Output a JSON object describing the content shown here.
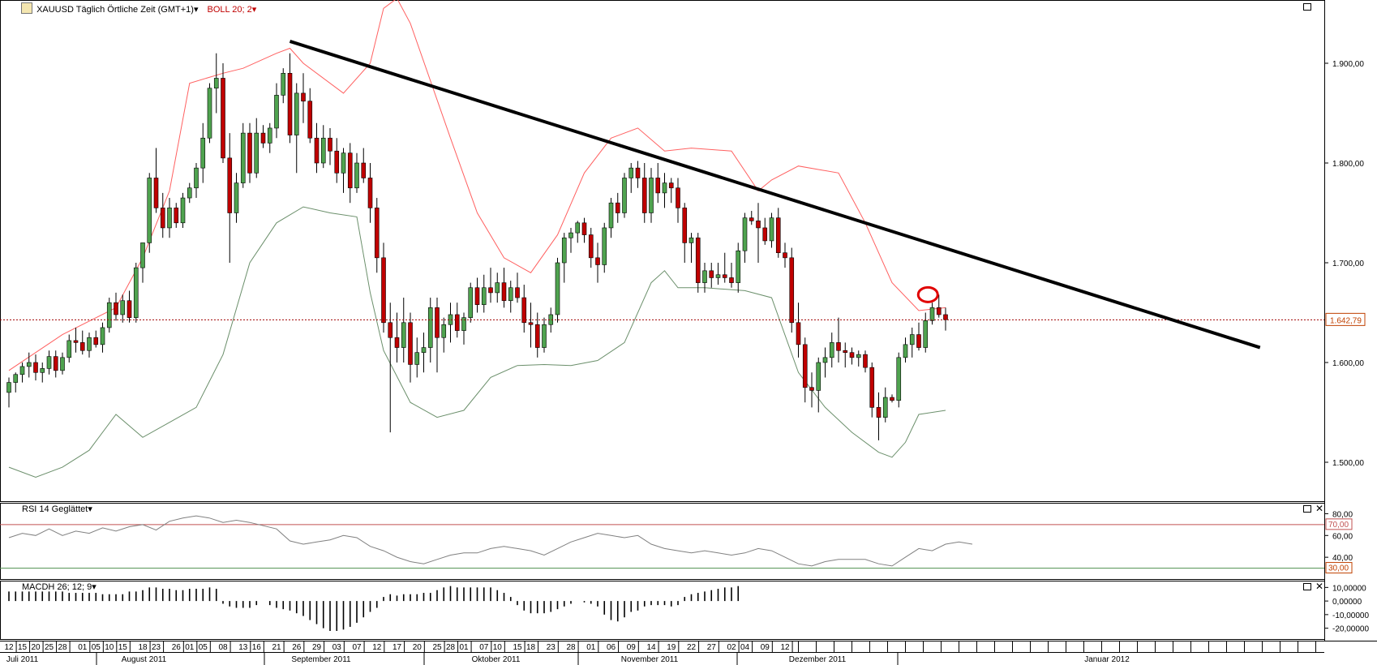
{
  "header": {
    "symbol": "XAUUSD Täglich Örtliche Zeit (GMT+1)",
    "indicator": "BOLL 20; 2"
  },
  "rsi_panel": {
    "label": "RSI 14 Geglättet"
  },
  "macd_panel": {
    "label": "MACDH 26; 12; 9"
  },
  "price_tag": "1.642,79",
  "icons": {
    "panel": "maximize-icon",
    "close": "close-icon",
    "dropdown": "dropdown-arrow-icon"
  },
  "colors": {
    "up": "#4fa34f",
    "down": "#c00000",
    "upper_band": "#ff6060",
    "lower_band": "#6b8f6b",
    "trendline": "#000000",
    "level_line": "#a00000",
    "rsi_line": "#808080",
    "rsi_70": "#c05050",
    "rsi_30": "#4f8f4f"
  },
  "axes": {
    "price_ticks": [
      "1.900,00",
      "1.800,00",
      "1.700,00",
      "1.600,00",
      "1.500,00"
    ],
    "rsi_ticks": [
      "80,00",
      "60,00",
      "40,00"
    ],
    "rsi_levels": [
      "70,00",
      "30,00"
    ],
    "macd_ticks": [
      "10,00000",
      "0,00000",
      "-10,00000",
      "-20,00000"
    ],
    "day_ticks": [
      "12",
      "15",
      "20",
      "25",
      "28",
      "01",
      "05",
      "10",
      "15",
      "18",
      "23",
      "26",
      "01",
      "05",
      "08",
      "13",
      "16",
      "21",
      "26",
      "29",
      "03",
      "07",
      "12",
      "17",
      "20",
      "25",
      "28",
      "01",
      "07",
      "10",
      "15",
      "18",
      "23",
      "28",
      "01",
      "06",
      "09",
      "14",
      "19",
      "22",
      "27",
      "02",
      "04",
      "09",
      "12"
    ],
    "month_labels": [
      "Juli 2011",
      "August 2011",
      "September 2011",
      "Oktober 2011",
      "November 2011",
      "Dezember 2011",
      "Januar 2012"
    ]
  },
  "chart_data": {
    "type": "candlestick",
    "title": "XAUUSD Täglich Örtliche Zeit (GMT+1)",
    "price_range": [
      1470,
      1970
    ],
    "current_price": 1642.79,
    "candles": [
      [
        1570,
        1585,
        1555,
        1580
      ],
      [
        1580,
        1590,
        1570,
        1588
      ],
      [
        1588,
        1600,
        1580,
        1596
      ],
      [
        1596,
        1610,
        1585,
        1600
      ],
      [
        1600,
        1608,
        1582,
        1590
      ],
      [
        1590,
        1600,
        1580,
        1594
      ],
      [
        1594,
        1612,
        1588,
        1606
      ],
      [
        1606,
        1612,
        1585,
        1592
      ],
      [
        1592,
        1610,
        1588,
        1605
      ],
      [
        1605,
        1628,
        1600,
        1622
      ],
      [
        1622,
        1635,
        1610,
        1620
      ],
      [
        1620,
        1632,
        1608,
        1612
      ],
      [
        1612,
        1630,
        1605,
        1625
      ],
      [
        1625,
        1632,
        1615,
        1618
      ],
      [
        1618,
        1640,
        1610,
        1635
      ],
      [
        1635,
        1665,
        1630,
        1660
      ],
      [
        1660,
        1670,
        1642,
        1648
      ],
      [
        1648,
        1668,
        1640,
        1662
      ],
      [
        1662,
        1672,
        1640,
        1645
      ],
      [
        1645,
        1700,
        1640,
        1695
      ],
      [
        1695,
        1720,
        1680,
        1720
      ],
      [
        1720,
        1790,
        1710,
        1785
      ],
      [
        1785,
        1815,
        1750,
        1755
      ],
      [
        1755,
        1770,
        1725,
        1735
      ],
      [
        1735,
        1765,
        1725,
        1755
      ],
      [
        1755,
        1760,
        1735,
        1740
      ],
      [
        1740,
        1770,
        1735,
        1765
      ],
      [
        1765,
        1780,
        1760,
        1775
      ],
      [
        1775,
        1800,
        1765,
        1795
      ],
      [
        1795,
        1840,
        1780,
        1825
      ],
      [
        1825,
        1880,
        1820,
        1875
      ],
      [
        1875,
        1910,
        1850,
        1885
      ],
      [
        1885,
        1900,
        1800,
        1805
      ],
      [
        1805,
        1830,
        1700,
        1750
      ],
      [
        1750,
        1790,
        1740,
        1780
      ],
      [
        1780,
        1840,
        1775,
        1830
      ],
      [
        1830,
        1840,
        1780,
        1790
      ],
      [
        1790,
        1845,
        1785,
        1830
      ],
      [
        1830,
        1838,
        1815,
        1820
      ],
      [
        1820,
        1840,
        1810,
        1835
      ],
      [
        1835,
        1880,
        1825,
        1868
      ],
      [
        1868,
        1895,
        1860,
        1890
      ],
      [
        1890,
        1910,
        1820,
        1828
      ],
      [
        1828,
        1880,
        1790,
        1870
      ],
      [
        1870,
        1890,
        1840,
        1862
      ],
      [
        1862,
        1875,
        1820,
        1825
      ],
      [
        1825,
        1840,
        1790,
        1800
      ],
      [
        1800,
        1838,
        1795,
        1825
      ],
      [
        1825,
        1835,
        1798,
        1812
      ],
      [
        1812,
        1825,
        1780,
        1790
      ],
      [
        1790,
        1815,
        1770,
        1810
      ],
      [
        1810,
        1820,
        1760,
        1775
      ],
      [
        1775,
        1810,
        1770,
        1800
      ],
      [
        1800,
        1815,
        1780,
        1785
      ],
      [
        1785,
        1800,
        1740,
        1755
      ],
      [
        1755,
        1765,
        1690,
        1705
      ],
      [
        1705,
        1720,
        1630,
        1640
      ],
      [
        1640,
        1660,
        1530,
        1625
      ],
      [
        1625,
        1650,
        1600,
        1615
      ],
      [
        1615,
        1665,
        1600,
        1640
      ],
      [
        1640,
        1650,
        1580,
        1598
      ],
      [
        1598,
        1625,
        1585,
        1610
      ],
      [
        1610,
        1630,
        1590,
        1615
      ],
      [
        1615,
        1665,
        1600,
        1655
      ],
      [
        1655,
        1665,
        1590,
        1625
      ],
      [
        1625,
        1645,
        1610,
        1638
      ],
      [
        1638,
        1660,
        1620,
        1648
      ],
      [
        1648,
        1660,
        1625,
        1632
      ],
      [
        1632,
        1650,
        1618,
        1645
      ],
      [
        1645,
        1680,
        1640,
        1675
      ],
      [
        1675,
        1685,
        1650,
        1658
      ],
      [
        1658,
        1688,
        1650,
        1675
      ],
      [
        1675,
        1695,
        1660,
        1670
      ],
      [
        1670,
        1690,
        1660,
        1680
      ],
      [
        1680,
        1695,
        1655,
        1662
      ],
      [
        1662,
        1682,
        1650,
        1675
      ],
      [
        1675,
        1690,
        1660,
        1665
      ],
      [
        1665,
        1678,
        1630,
        1640
      ],
      [
        1640,
        1660,
        1615,
        1638
      ],
      [
        1638,
        1650,
        1605,
        1615
      ],
      [
        1615,
        1645,
        1610,
        1638
      ],
      [
        1638,
        1655,
        1630,
        1648
      ],
      [
        1648,
        1705,
        1640,
        1700
      ],
      [
        1700,
        1730,
        1680,
        1725
      ],
      [
        1725,
        1735,
        1710,
        1730
      ],
      [
        1730,
        1742,
        1720,
        1740
      ],
      [
        1740,
        1745,
        1720,
        1728
      ],
      [
        1728,
        1735,
        1695,
        1705
      ],
      [
        1705,
        1720,
        1680,
        1698
      ],
      [
        1698,
        1740,
        1690,
        1735
      ],
      [
        1735,
        1765,
        1725,
        1760
      ],
      [
        1760,
        1770,
        1740,
        1750
      ],
      [
        1750,
        1790,
        1745,
        1785
      ],
      [
        1785,
        1800,
        1770,
        1795
      ],
      [
        1795,
        1802,
        1775,
        1785
      ],
      [
        1785,
        1800,
        1740,
        1750
      ],
      [
        1750,
        1795,
        1740,
        1785
      ],
      [
        1785,
        1800,
        1760,
        1770
      ],
      [
        1770,
        1790,
        1755,
        1780
      ],
      [
        1780,
        1785,
        1760,
        1775
      ],
      [
        1775,
        1785,
        1740,
        1755
      ],
      [
        1755,
        1760,
        1700,
        1720
      ],
      [
        1720,
        1730,
        1700,
        1725
      ],
      [
        1725,
        1730,
        1670,
        1680
      ],
      [
        1680,
        1700,
        1670,
        1692
      ],
      [
        1692,
        1700,
        1675,
        1685
      ],
      [
        1685,
        1700,
        1678,
        1688
      ],
      [
        1688,
        1710,
        1680,
        1685
      ],
      [
        1685,
        1700,
        1675,
        1680
      ],
      [
        1680,
        1720,
        1670,
        1712
      ],
      [
        1712,
        1750,
        1700,
        1745
      ],
      [
        1745,
        1752,
        1738,
        1742
      ],
      [
        1742,
        1760,
        1700,
        1735
      ],
      [
        1735,
        1745,
        1718,
        1722
      ],
      [
        1722,
        1750,
        1715,
        1745
      ],
      [
        1745,
        1755,
        1705,
        1710
      ],
      [
        1710,
        1720,
        1695,
        1705
      ],
      [
        1705,
        1715,
        1630,
        1640
      ],
      [
        1640,
        1660,
        1605,
        1618
      ],
      [
        1618,
        1625,
        1560,
        1575
      ],
      [
        1575,
        1590,
        1555,
        1572
      ],
      [
        1572,
        1605,
        1550,
        1600
      ],
      [
        1600,
        1615,
        1585,
        1605
      ],
      [
        1605,
        1630,
        1595,
        1620
      ],
      [
        1620,
        1645,
        1600,
        1612
      ],
      [
        1612,
        1620,
        1595,
        1610
      ],
      [
        1610,
        1615,
        1598,
        1605
      ],
      [
        1605,
        1612,
        1596,
        1608
      ],
      [
        1608,
        1612,
        1590,
        1595
      ],
      [
        1595,
        1600,
        1545,
        1555
      ],
      [
        1555,
        1570,
        1522,
        1545
      ],
      [
        1545,
        1575,
        1540,
        1565
      ],
      [
        1565,
        1568,
        1560,
        1562
      ],
      [
        1562,
        1610,
        1555,
        1605
      ],
      [
        1605,
        1625,
        1600,
        1618
      ],
      [
        1618,
        1635,
        1605,
        1628
      ],
      [
        1628,
        1640,
        1612,
        1615
      ],
      [
        1615,
        1650,
        1610,
        1642
      ],
      [
        1642,
        1660,
        1638,
        1655
      ],
      [
        1655,
        1668,
        1645,
        1648
      ],
      [
        1648,
        1655,
        1632,
        1643
      ]
    ],
    "upper_band": [
      [
        0,
        1592
      ],
      [
        8,
        1628
      ],
      [
        16,
        1655
      ],
      [
        20,
        1705
      ],
      [
        24,
        1772
      ],
      [
        27,
        1880
      ],
      [
        32,
        1890
      ],
      [
        35,
        1895
      ],
      [
        40,
        1910
      ],
      [
        42,
        1915
      ],
      [
        44,
        1900
      ],
      [
        50,
        1870
      ],
      [
        54,
        1900
      ],
      [
        56,
        1955
      ],
      [
        58,
        1965
      ],
      [
        60,
        1940
      ],
      [
        66,
        1825
      ],
      [
        70,
        1750
      ],
      [
        74,
        1705
      ],
      [
        78,
        1690
      ],
      [
        82,
        1728
      ],
      [
        86,
        1790
      ],
      [
        90,
        1825
      ],
      [
        94,
        1835
      ],
      [
        98,
        1812
      ],
      [
        102,
        1815
      ],
      [
        108,
        1812
      ],
      [
        112,
        1772
      ],
      [
        114,
        1783
      ],
      [
        118,
        1797
      ],
      [
        124,
        1790
      ],
      [
        128,
        1740
      ],
      [
        132,
        1680
      ],
      [
        136,
        1652
      ],
      [
        140,
        1655
      ]
    ],
    "lower_band": [
      [
        0,
        1495
      ],
      [
        4,
        1485
      ],
      [
        8,
        1495
      ],
      [
        12,
        1512
      ],
      [
        16,
        1548
      ],
      [
        20,
        1525
      ],
      [
        24,
        1540
      ],
      [
        28,
        1555
      ],
      [
        32,
        1608
      ],
      [
        36,
        1700
      ],
      [
        40,
        1740
      ],
      [
        44,
        1756
      ],
      [
        48,
        1750
      ],
      [
        52,
        1746
      ],
      [
        54,
        1670
      ],
      [
        56,
        1612
      ],
      [
        60,
        1560
      ],
      [
        64,
        1545
      ],
      [
        68,
        1552
      ],
      [
        72,
        1585
      ],
      [
        76,
        1597
      ],
      [
        80,
        1598
      ],
      [
        84,
        1597
      ],
      [
        88,
        1602
      ],
      [
        92,
        1620
      ],
      [
        96,
        1680
      ],
      [
        98,
        1692
      ],
      [
        100,
        1675
      ],
      [
        104,
        1675
      ],
      [
        110,
        1672
      ],
      [
        114,
        1665
      ],
      [
        118,
        1590
      ],
      [
        122,
        1555
      ],
      [
        126,
        1530
      ],
      [
        130,
        1510
      ],
      [
        132,
        1505
      ],
      [
        134,
        1520
      ],
      [
        136,
        1548
      ],
      [
        140,
        1552
      ]
    ],
    "trendline": [
      [
        42,
        1922
      ],
      [
        187,
        1615
      ]
    ],
    "rsi_series": [
      [
        0,
        58
      ],
      [
        2,
        62
      ],
      [
        4,
        60
      ],
      [
        6,
        66
      ],
      [
        8,
        60
      ],
      [
        10,
        64
      ],
      [
        12,
        62
      ],
      [
        14,
        67
      ],
      [
        16,
        64
      ],
      [
        18,
        68
      ],
      [
        20,
        70
      ],
      [
        22,
        65
      ],
      [
        24,
        73
      ],
      [
        26,
        76
      ],
      [
        28,
        78
      ],
      [
        30,
        76
      ],
      [
        32,
        72
      ],
      [
        34,
        74
      ],
      [
        36,
        72
      ],
      [
        38,
        69
      ],
      [
        40,
        66
      ],
      [
        42,
        55
      ],
      [
        44,
        52
      ],
      [
        46,
        54
      ],
      [
        48,
        56
      ],
      [
        50,
        60
      ],
      [
        52,
        58
      ],
      [
        54,
        50
      ],
      [
        56,
        46
      ],
      [
        58,
        40
      ],
      [
        60,
        36
      ],
      [
        62,
        34
      ],
      [
        64,
        38
      ],
      [
        66,
        42
      ],
      [
        68,
        44
      ],
      [
        70,
        44
      ],
      [
        72,
        48
      ],
      [
        74,
        50
      ],
      [
        76,
        48
      ],
      [
        78,
        46
      ],
      [
        80,
        42
      ],
      [
        82,
        48
      ],
      [
        84,
        54
      ],
      [
        86,
        58
      ],
      [
        88,
        62
      ],
      [
        90,
        60
      ],
      [
        92,
        58
      ],
      [
        94,
        60
      ],
      [
        96,
        52
      ],
      [
        98,
        48
      ],
      [
        100,
        46
      ],
      [
        102,
        44
      ],
      [
        104,
        46
      ],
      [
        106,
        44
      ],
      [
        108,
        42
      ],
      [
        110,
        44
      ],
      [
        112,
        48
      ],
      [
        114,
        46
      ],
      [
        116,
        40
      ],
      [
        118,
        34
      ],
      [
        120,
        32
      ],
      [
        122,
        36
      ],
      [
        124,
        38
      ],
      [
        126,
        38
      ],
      [
        128,
        38
      ],
      [
        130,
        34
      ],
      [
        132,
        32
      ],
      [
        134,
        40
      ],
      [
        136,
        48
      ],
      [
        138,
        46
      ],
      [
        140,
        52
      ],
      [
        142,
        54
      ],
      [
        144,
        52
      ]
    ],
    "macd_hist": [
      7,
      7,
      7,
      7,
      7,
      7,
      7,
      7,
      7,
      6,
      6,
      6,
      6,
      6,
      5,
      5,
      5,
      5,
      7,
      7,
      8,
      10,
      10,
      9,
      9,
      8,
      8,
      9,
      9,
      9,
      10,
      9,
      -2,
      -4,
      -5,
      -5,
      -5,
      -3,
      0,
      -3,
      -5,
      -6,
      -7,
      -9,
      -11,
      -14,
      -17,
      -20,
      -22,
      -22,
      -21,
      -19,
      -16,
      -12,
      -8,
      -5,
      3,
      5,
      4,
      5,
      5,
      5,
      6,
      6,
      8,
      10,
      11,
      10,
      10,
      10,
      10,
      10,
      10,
      8,
      6,
      3,
      -3,
      -7,
      -9,
      -9,
      -9,
      -8,
      -6,
      -4,
      -2,
      0,
      -1,
      -2,
      -4,
      -10,
      -14,
      -15,
      -12,
      -8,
      -7,
      -4,
      -3,
      -3,
      -3,
      -4,
      -3,
      3,
      5,
      6,
      7,
      8,
      9,
      10,
      10,
      11
    ],
    "rsi_ylim": [
      20,
      90
    ],
    "macd_ylim": [
      -25,
      12
    ]
  }
}
